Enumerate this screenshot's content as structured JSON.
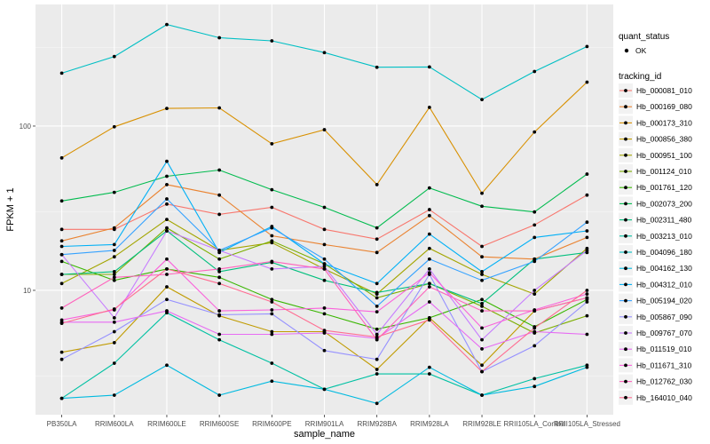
{
  "chart_data": {
    "type": "line",
    "xlabel": "sample_name",
    "ylabel": "FPKM + 1",
    "y_scale": "log10",
    "ylim": [
      1.75,
      550
    ],
    "y_ticks": [
      10,
      100
    ],
    "grid": true,
    "legend_position": "right",
    "categories": [
      "PB350LA",
      "RRIM600LA",
      "RRIM600LE",
      "RRIM600SE",
      "RRIM600PE",
      "RRIM901LA",
      "RRIM928BA",
      "RRIM928LA",
      "RRIM928LE",
      "RRII105LA_Control",
      "RRII105LA_Stressed"
    ],
    "shape_legend": {
      "title": "quant_status",
      "entries": [
        "OK"
      ]
    },
    "color_legend_title": "tracking_id",
    "series": [
      {
        "name": "Hb_000081_010",
        "color": "#F8766D",
        "values": [
          23.5,
          23.5,
          33.5,
          29,
          32,
          23.5,
          20.5,
          31,
          18.5,
          25,
          38
        ]
      },
      {
        "name": "Hb_000169_080",
        "color": "#EA8331",
        "values": [
          20,
          24,
          44,
          38,
          21.5,
          19,
          17,
          28.5,
          16,
          15.5,
          21
        ]
      },
      {
        "name": "Hb_000173_310",
        "color": "#D89000",
        "values": [
          64,
          99,
          128,
          129,
          78,
          95,
          44,
          130,
          39,
          92,
          185
        ]
      },
      {
        "name": "Hb_000856_380",
        "color": "#C09B00",
        "values": [
          4.2,
          4.8,
          10.5,
          7,
          5.6,
          5.6,
          3.3,
          6.8,
          3.5,
          7.5,
          9
        ]
      },
      {
        "name": "Hb_000951_100",
        "color": "#A3A500",
        "values": [
          11,
          16,
          27,
          17.5,
          19.5,
          13.5,
          9.5,
          18,
          12.5,
          9.5,
          18
        ]
      },
      {
        "name": "Hb_001124_010",
        "color": "#7CAE00",
        "values": [
          12.5,
          12.5,
          24,
          15.5,
          20,
          14.5,
          9,
          11,
          8,
          5.5,
          7
        ]
      },
      {
        "name": "Hb_001761_120",
        "color": "#39B600",
        "values": [
          15,
          11.5,
          13.5,
          12,
          8.8,
          7.2,
          5.8,
          6.8,
          8.8,
          6,
          8.8
        ]
      },
      {
        "name": "Hb_002073_200",
        "color": "#00BB4E",
        "values": [
          35,
          39.5,
          49.5,
          54,
          41,
          32,
          24,
          42,
          32.5,
          30,
          51
        ]
      },
      {
        "name": "Hb_002311_480",
        "color": "#00BF7D",
        "values": [
          12.5,
          13,
          23,
          13,
          14.8,
          11.5,
          9.7,
          11,
          8.3,
          15.5,
          17
        ]
      },
      {
        "name": "Hb_003213_010",
        "color": "#00C1A3",
        "values": [
          2.2,
          3.6,
          7.3,
          5,
          3.6,
          2.5,
          3.1,
          3.1,
          2.3,
          2.9,
          3.5
        ]
      },
      {
        "name": "Hb_004096_180",
        "color": "#00BFC4",
        "values": [
          210,
          265,
          415,
          345,
          330,
          280,
          228,
          229,
          145,
          215,
          305
        ]
      },
      {
        "name": "Hb_004162_130",
        "color": "#00BAE0",
        "values": [
          2.2,
          2.3,
          3.5,
          2.3,
          2.8,
          2.5,
          2.05,
          3.4,
          2.3,
          2.6,
          3.4
        ]
      },
      {
        "name": "Hb_004312_010",
        "color": "#00B0F6",
        "values": [
          18.5,
          19,
          61,
          17,
          24.5,
          14.5,
          11,
          22,
          13,
          21,
          23
        ]
      },
      {
        "name": "Hb_005194_020",
        "color": "#35A2FF",
        "values": [
          16.5,
          17.5,
          36,
          17.5,
          24,
          15.5,
          8,
          15.5,
          11.5,
          15,
          26
        ]
      },
      {
        "name": "Hb_005867_090",
        "color": "#9590FF",
        "values": [
          3.8,
          5.6,
          8.8,
          7.1,
          7.2,
          4.3,
          3.8,
          12.5,
          3.2,
          4.6,
          8.5
        ]
      },
      {
        "name": "Hb_009767_070",
        "color": "#C77CFF",
        "values": [
          16.5,
          6.8,
          23,
          17.5,
          13.5,
          14,
          5.4,
          13.5,
          5,
          10,
          17.5
        ]
      },
      {
        "name": "Hb_011519_010",
        "color": "#E76BF3",
        "values": [
          6.4,
          6.4,
          7.5,
          5.4,
          5.4,
          5.5,
          5.1,
          8.5,
          4.4,
          5.6,
          5.4
        ]
      },
      {
        "name": "Hb_011671_310",
        "color": "#FA62DB",
        "values": [
          6.6,
          7.6,
          15.5,
          7.5,
          7.6,
          7.8,
          7.4,
          12.8,
          5.9,
          7.6,
          9.5
        ]
      },
      {
        "name": "Hb_012762_030",
        "color": "#FF62BC",
        "values": [
          7.8,
          12,
          12.5,
          13.5,
          15,
          13.5,
          5,
          10.5,
          7.5,
          7.5,
          9
        ]
      },
      {
        "name": "Hb_164010_040",
        "color": "#FF6C91",
        "values": [
          6.3,
          7.7,
          13.5,
          11,
          8.5,
          5.7,
          5.2,
          6.6,
          3.2,
          5.9,
          10
        ]
      }
    ]
  }
}
